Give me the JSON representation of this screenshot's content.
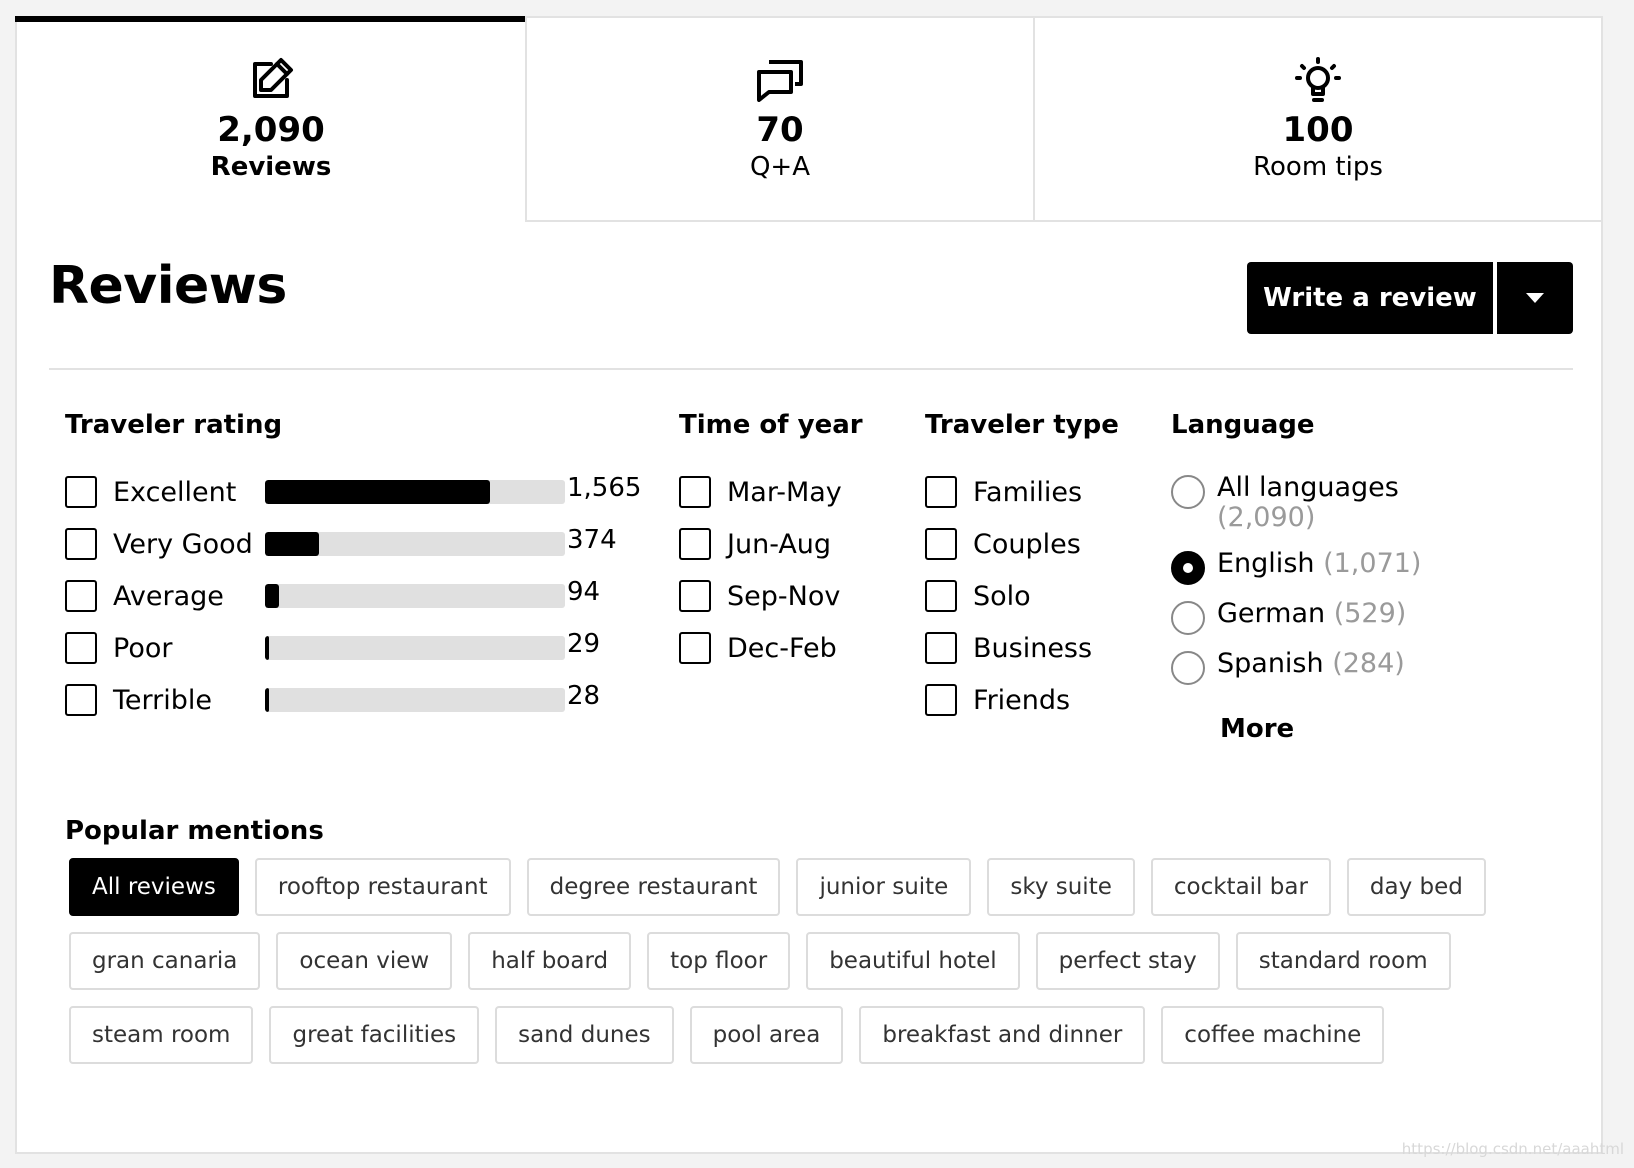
{
  "tabs": [
    {
      "count": "2,090",
      "label": "Reviews",
      "icon": "edit-icon",
      "active": true
    },
    {
      "count": "70",
      "label": "Q+A",
      "icon": "chat-icon",
      "active": false
    },
    {
      "count": "100",
      "label": "Room tips",
      "icon": "lightbulb-icon",
      "active": false
    }
  ],
  "header": {
    "title": "Reviews",
    "write_review_label": "Write a review"
  },
  "traveler_rating": {
    "title": "Traveler rating",
    "items": [
      {
        "label": "Excellent",
        "count": "1,565",
        "fill_fraction": 0.749
      },
      {
        "label": "Very Good",
        "count": "374",
        "fill_fraction": 0.179
      },
      {
        "label": "Average",
        "count": "94",
        "fill_fraction": 0.045
      },
      {
        "label": "Poor",
        "count": "29",
        "fill_fraction": 0.014
      },
      {
        "label": "Terrible",
        "count": "28",
        "fill_fraction": 0.013
      }
    ]
  },
  "time_of_year": {
    "title": "Time of year",
    "items": [
      "Mar-May",
      "Jun-Aug",
      "Sep-Nov",
      "Dec-Feb"
    ]
  },
  "traveler_type": {
    "title": "Traveler type",
    "items": [
      "Families",
      "Couples",
      "Solo",
      "Business",
      "Friends"
    ]
  },
  "language": {
    "title": "Language",
    "items": [
      {
        "label": "All languages",
        "count": "(2,090)",
        "selected": false
      },
      {
        "label": "English",
        "count": "(1,071)",
        "selected": true
      },
      {
        "label": "German",
        "count": "(529)",
        "selected": false
      },
      {
        "label": "Spanish",
        "count": "(284)",
        "selected": false
      }
    ],
    "more_label": "More"
  },
  "popular_mentions": {
    "title": "Popular mentions",
    "rows": [
      [
        "All reviews",
        "rooftop restaurant",
        "degree restaurant",
        "junior suite",
        "sky suite",
        "cocktail bar",
        "day bed"
      ],
      [
        "gran canaria",
        "ocean view",
        "half board",
        "top floor",
        "beautiful hotel",
        "perfect stay",
        "standard room"
      ],
      [
        "steam room",
        "great facilities",
        "sand dunes",
        "pool area",
        "breakfast and dinner",
        "coffee machine"
      ]
    ]
  },
  "watermark": "https://blog.csdn.net/aaahtml"
}
